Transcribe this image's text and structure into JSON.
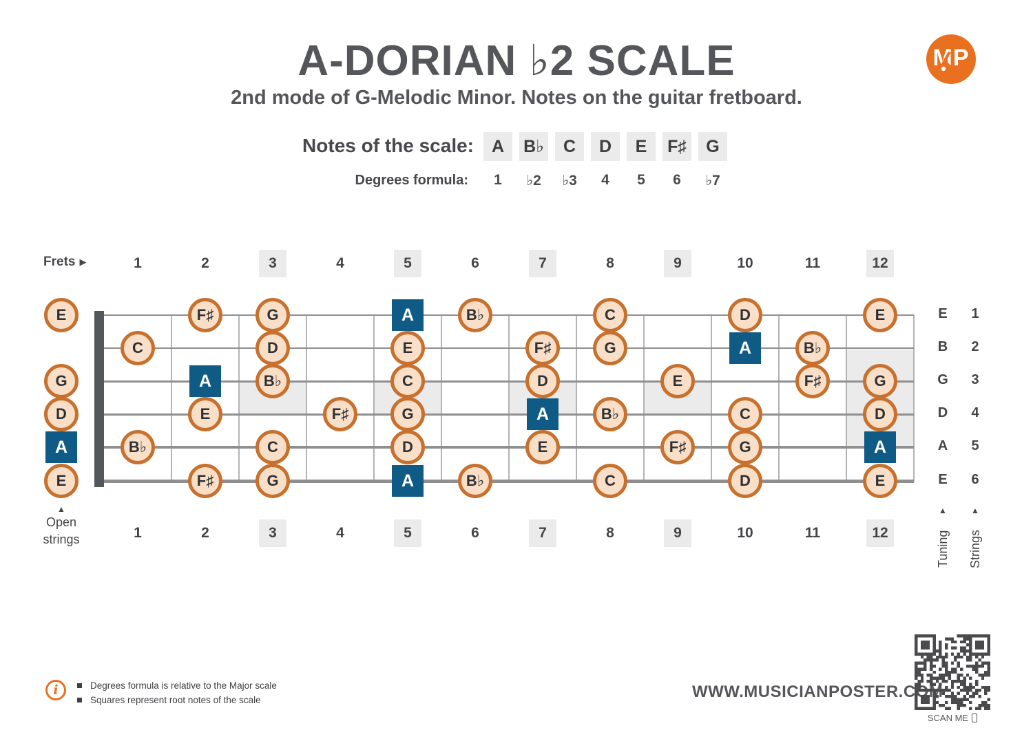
{
  "title": "A-DORIAN ♭2 SCALE",
  "subtitle": "2nd mode of G-Melodic Minor. Notes on the guitar fretboard.",
  "logo": {
    "text": "MP"
  },
  "scale": {
    "notes_label": "Notes of the scale:",
    "degrees_label": "Degrees formula:",
    "notes": [
      "A",
      "B♭",
      "C",
      "D",
      "E",
      "F♯",
      "G"
    ],
    "degrees": [
      "1",
      "♭2",
      "♭3",
      "4",
      "5",
      "6",
      "♭7"
    ]
  },
  "fretboard": {
    "frets_label": "Frets",
    "frets_arrow": "▶",
    "up_arrow": "▲",
    "open_strings_label": "Open strings",
    "tuning_label": "Tuning",
    "strings_label": "Strings",
    "fret_numbers": [
      "1",
      "2",
      "3",
      "4",
      "5",
      "6",
      "7",
      "8",
      "9",
      "10",
      "11",
      "12"
    ],
    "highlighted_frets": [
      3,
      5,
      7,
      9,
      12
    ],
    "single_inlay_frets": [
      3,
      5,
      7,
      9
    ],
    "double_inlay_frets": [
      12
    ],
    "strings": [
      {
        "number": "1",
        "tuning": "E"
      },
      {
        "number": "2",
        "tuning": "B"
      },
      {
        "number": "3",
        "tuning": "G"
      },
      {
        "number": "4",
        "tuning": "D"
      },
      {
        "number": "5",
        "tuning": "A"
      },
      {
        "number": "6",
        "tuning": "E"
      }
    ],
    "notes": [
      {
        "fret": 0,
        "string": 1,
        "note": "E",
        "root": false
      },
      {
        "fret": 0,
        "string": 3,
        "note": "G",
        "root": false
      },
      {
        "fret": 0,
        "string": 4,
        "note": "D",
        "root": false
      },
      {
        "fret": 0,
        "string": 5,
        "note": "A",
        "root": true
      },
      {
        "fret": 0,
        "string": 6,
        "note": "E",
        "root": false
      },
      {
        "fret": 1,
        "string": 2,
        "note": "C",
        "root": false
      },
      {
        "fret": 1,
        "string": 5,
        "note": "B♭",
        "root": false
      },
      {
        "fret": 2,
        "string": 1,
        "note": "F♯",
        "root": false
      },
      {
        "fret": 2,
        "string": 3,
        "note": "A",
        "root": true
      },
      {
        "fret": 2,
        "string": 4,
        "note": "E",
        "root": false
      },
      {
        "fret": 2,
        "string": 6,
        "note": "F♯",
        "root": false
      },
      {
        "fret": 3,
        "string": 1,
        "note": "G",
        "root": false
      },
      {
        "fret": 3,
        "string": 2,
        "note": "D",
        "root": false
      },
      {
        "fret": 3,
        "string": 3,
        "note": "B♭",
        "root": false
      },
      {
        "fret": 3,
        "string": 5,
        "note": "C",
        "root": false
      },
      {
        "fret": 3,
        "string": 6,
        "note": "G",
        "root": false
      },
      {
        "fret": 4,
        "string": 4,
        "note": "F♯",
        "root": false
      },
      {
        "fret": 5,
        "string": 1,
        "note": "A",
        "root": true
      },
      {
        "fret": 5,
        "string": 2,
        "note": "E",
        "root": false
      },
      {
        "fret": 5,
        "string": 3,
        "note": "C",
        "root": false
      },
      {
        "fret": 5,
        "string": 4,
        "note": "G",
        "root": false
      },
      {
        "fret": 5,
        "string": 5,
        "note": "D",
        "root": false
      },
      {
        "fret": 5,
        "string": 6,
        "note": "A",
        "root": true
      },
      {
        "fret": 6,
        "string": 1,
        "note": "B♭",
        "root": false
      },
      {
        "fret": 6,
        "string": 6,
        "note": "B♭",
        "root": false
      },
      {
        "fret": 7,
        "string": 2,
        "note": "F♯",
        "root": false
      },
      {
        "fret": 7,
        "string": 3,
        "note": "D",
        "root": false
      },
      {
        "fret": 7,
        "string": 4,
        "note": "A",
        "root": true
      },
      {
        "fret": 7,
        "string": 5,
        "note": "E",
        "root": false
      },
      {
        "fret": 8,
        "string": 1,
        "note": "C",
        "root": false
      },
      {
        "fret": 8,
        "string": 2,
        "note": "G",
        "root": false
      },
      {
        "fret": 8,
        "string": 4,
        "note": "B♭",
        "root": false
      },
      {
        "fret": 8,
        "string": 6,
        "note": "C",
        "root": false
      },
      {
        "fret": 9,
        "string": 3,
        "note": "E",
        "root": false
      },
      {
        "fret": 9,
        "string": 5,
        "note": "F♯",
        "root": false
      },
      {
        "fret": 10,
        "string": 1,
        "note": "D",
        "root": false
      },
      {
        "fret": 10,
        "string": 2,
        "note": "A",
        "root": true
      },
      {
        "fret": 10,
        "string": 4,
        "note": "C",
        "root": false
      },
      {
        "fret": 10,
        "string": 5,
        "note": "G",
        "root": false
      },
      {
        "fret": 10,
        "string": 6,
        "note": "D",
        "root": false
      },
      {
        "fret": 11,
        "string": 2,
        "note": "B♭",
        "root": false
      },
      {
        "fret": 11,
        "string": 3,
        "note": "F♯",
        "root": false
      },
      {
        "fret": 12,
        "string": 1,
        "note": "E",
        "root": false
      },
      {
        "fret": 12,
        "string": 3,
        "note": "G",
        "root": false
      },
      {
        "fret": 12,
        "string": 4,
        "note": "D",
        "root": false
      },
      {
        "fret": 12,
        "string": 5,
        "note": "A",
        "root": true
      },
      {
        "fret": 12,
        "string": 6,
        "note": "E",
        "root": false
      }
    ]
  },
  "footer": {
    "info_notes": [
      "Degrees formula is relative to the Major scale",
      "Squares represent root notes of the scale"
    ],
    "website": "WWW.MUSICIANPOSTER.COM",
    "scan_label": "SCAN ME"
  },
  "colors": {
    "accent_orange": "#e8701f",
    "note_border": "#c8702d",
    "note_fill": "#f9dfc8",
    "root_blue": "#0f5b85",
    "text_dark": "#55565a",
    "highlight_gray": "#ebebeb",
    "string_gray": "#8f8f8f",
    "fretline_gray": "#b3b3b3"
  }
}
